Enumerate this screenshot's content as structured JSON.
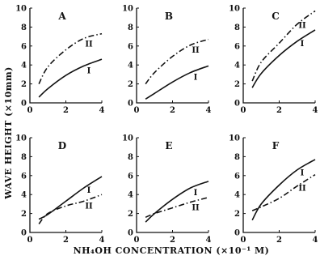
{
  "chart_data": {
    "type": "line",
    "ylabel": "WAVE HEIGHT (×10mm)",
    "xlabel": "NH₄OH CONCENTRATION (×10⁻¹ M)",
    "xlim": [
      0,
      4
    ],
    "ylim": [
      0,
      10
    ],
    "x_ticks": [
      0,
      2,
      4
    ],
    "y_ticks": [
      0,
      2,
      4,
      6,
      8,
      10
    ],
    "grid": false,
    "panels": [
      {
        "label": "A",
        "series": [
          {
            "name": "I",
            "style": "solid",
            "x": [
              0.5,
              1,
              2,
              3,
              4
            ],
            "y": [
              0.6,
              1.5,
              2.9,
              3.9,
              4.6
            ]
          },
          {
            "name": "II",
            "style": "dash-dot",
            "x": [
              0.5,
              1,
              2,
              3,
              4
            ],
            "y": [
              2.0,
              3.8,
              5.6,
              6.8,
              7.3
            ]
          }
        ]
      },
      {
        "label": "B",
        "series": [
          {
            "name": "I",
            "style": "solid",
            "x": [
              0.5,
              1,
              2,
              3,
              4
            ],
            "y": [
              0.4,
              1.0,
              2.2,
              3.2,
              3.9
            ]
          },
          {
            "name": "II",
            "style": "dash-dot",
            "x": [
              0.5,
              1,
              2,
              3,
              4
            ],
            "y": [
              2.0,
              3.2,
              4.9,
              6.1,
              6.7
            ]
          }
        ]
      },
      {
        "label": "C",
        "series": [
          {
            "name": "I",
            "style": "solid",
            "x": [
              0.5,
              1,
              2,
              3,
              4
            ],
            "y": [
              1.6,
              3.1,
              5.0,
              6.5,
              7.7
            ]
          },
          {
            "name": "II",
            "style": "dash-dot",
            "x": [
              0.5,
              1,
              2,
              3,
              4
            ],
            "y": [
              2.3,
              4.3,
              6.3,
              8.3,
              9.7
            ]
          }
        ]
      },
      {
        "label": "D",
        "series": [
          {
            "name": "I",
            "style": "solid",
            "x": [
              0.5,
              1,
              2,
              3,
              4
            ],
            "y": [
              1.4,
              1.9,
              3.3,
              4.7,
              5.9
            ]
          },
          {
            "name": "II",
            "style": "dash-dot",
            "x": [
              0.5,
              1,
              2,
              3,
              4
            ],
            "y": [
              0.9,
              2.0,
              2.8,
              3.3,
              4.0
            ]
          }
        ]
      },
      {
        "label": "E",
        "series": [
          {
            "name": "I",
            "style": "solid",
            "x": [
              0.5,
              1,
              2,
              3,
              4
            ],
            "y": [
              1.1,
              2.0,
              3.5,
              4.7,
              5.4
            ]
          },
          {
            "name": "II",
            "style": "dash-dot",
            "x": [
              0.5,
              1,
              2,
              3,
              4
            ],
            "y": [
              1.6,
              2.0,
              2.6,
              3.2,
              3.7
            ]
          }
        ]
      },
      {
        "label": "F",
        "series": [
          {
            "name": "I",
            "style": "solid",
            "x": [
              0.5,
              1,
              2,
              3,
              4
            ],
            "y": [
              1.3,
              3.0,
              5.0,
              6.6,
              7.7
            ]
          },
          {
            "name": "II",
            "style": "dash-dot",
            "x": [
              0.5,
              1,
              2,
              3,
              4
            ],
            "y": [
              2.3,
              2.7,
              3.6,
              4.9,
              6.1
            ]
          }
        ]
      }
    ]
  }
}
